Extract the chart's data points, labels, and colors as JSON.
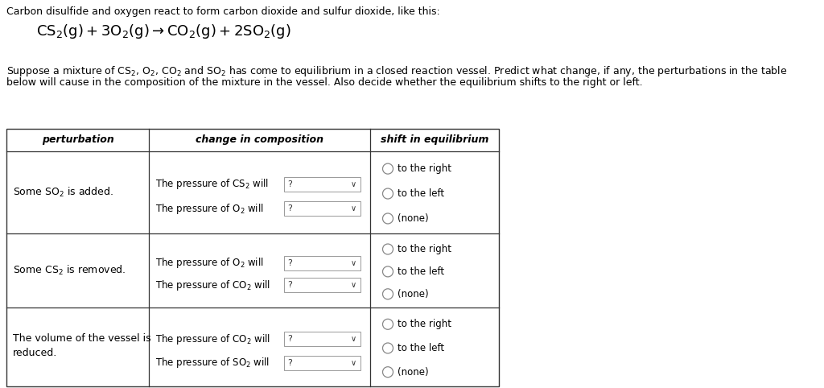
{
  "bg_color": "#ffffff",
  "intro_line1": "Carbon disulfide and oxygen react to form carbon dioxide and sulfur dioxide, like this:",
  "equation_display": "$\\mathregular{CS_2(g)+3O_2(g) \\rightarrow CO_2(g)+2SO_2(g)}$",
  "para_line1": "Suppose a mixture of $\\mathregular{CS_2}$, $\\mathregular{O_2}$, $\\mathregular{CO_2}$ and $\\mathregular{SO_2}$ has come to equilibrium in a closed reaction vessel. Predict what change, if any, the perturbations in the table",
  "para_line2": "below will cause in the composition of the mixture in the vessel. Also decide whether the equilibrium shifts to the right or left.",
  "col1_header": "perturbation",
  "col2_header": "change in composition",
  "col3_header": "shift in equilibrium",
  "row1_col1": "Some $\\mathregular{SO_2}$ is added.",
  "row1_col2_line1": "The pressure of $\\mathregular{CS_2}$ will",
  "row1_col2_line2": "The pressure of $\\mathregular{O_2}$ will",
  "row1_col3": [
    "to the right",
    "to the left",
    "(none)"
  ],
  "row2_col1": "Some $\\mathregular{CS_2}$ is removed.",
  "row2_col2_line1": "The pressure of $\\mathregular{O_2}$ will",
  "row2_col2_line2": "The pressure of $\\mathregular{CO_2}$ will",
  "row2_col3": [
    "to the right",
    "to the left",
    "(none)"
  ],
  "row3_col1_line1": "The volume of the vessel is",
  "row3_col1_line2": "reduced.",
  "row3_col2_line1": "The pressure of $\\mathregular{CO_2}$ will",
  "row3_col2_line2": "The pressure of $\\mathregular{SO_2}$ will",
  "row3_col3": [
    "to the right",
    "to the left",
    "(none)"
  ],
  "font_size": 9.0
}
